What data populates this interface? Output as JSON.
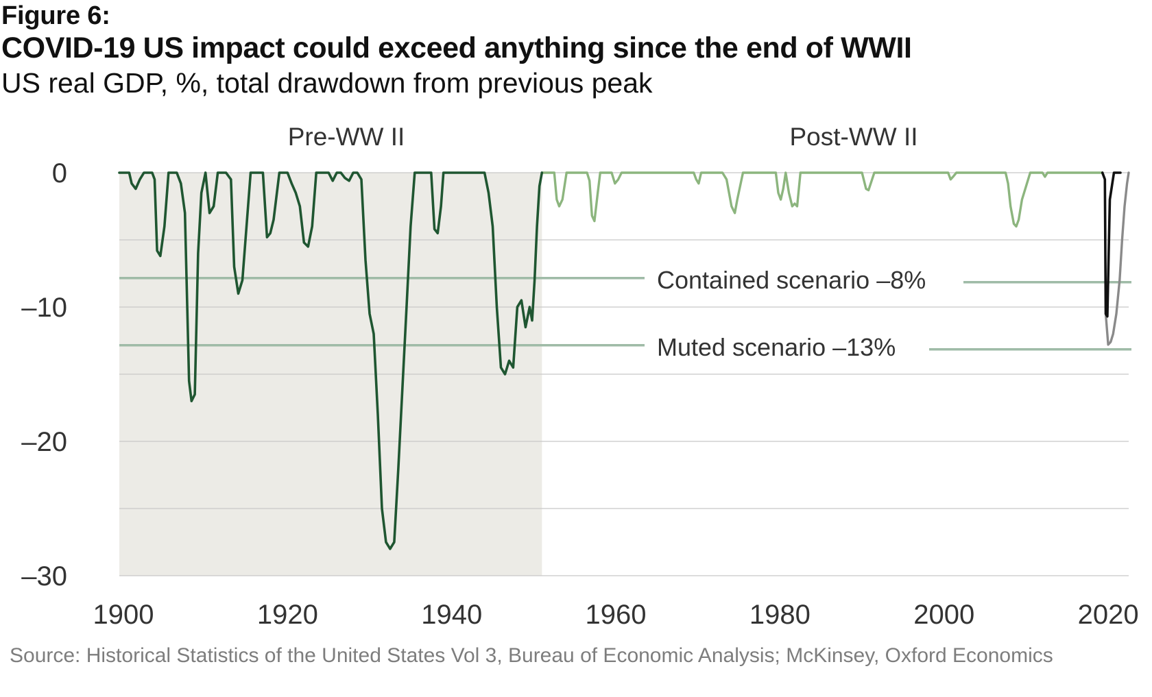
{
  "figure_label": "Figure 6:",
  "title": "COVID-19 US impact could exceed anything since the end of WWII",
  "subtitle": "US real GDP, %, total drawdown from previous peak",
  "source": "Source: Historical Statistics of the United States Vol 3, Bureau of Economic Analysis; McKinsey, Oxford Economics",
  "colors": {
    "pre_ww2": "#1f5631",
    "post_ww2": "#8cb57e",
    "covid_actual": "#111111",
    "covid_scenario": "#8a8a8a",
    "scenario_line": "#9fbba7",
    "shade": "#ecebe6",
    "grid": "#c8c8c8"
  },
  "chart_data": {
    "type": "line",
    "xlim": [
      1900,
      2023
    ],
    "ylim": [
      -30,
      0
    ],
    "x_ticks": [
      1900,
      1920,
      1940,
      1960,
      1980,
      2000,
      2020
    ],
    "y_ticks": [
      0,
      -10,
      -20,
      -30
    ],
    "y_tick_labels": [
      "0",
      "–10",
      "–20",
      "–30"
    ],
    "periods": [
      {
        "label": "Pre-WW II",
        "from": 1900,
        "to": 1951.5,
        "shaded": true
      },
      {
        "label": "Post-WW II",
        "from": 1951.5,
        "to": 2023,
        "shaded": false
      }
    ],
    "scenarios": [
      {
        "label": "Contained scenario –8%",
        "value": -8
      },
      {
        "label": "Muted scenario –13%",
        "value": -13
      }
    ],
    "series": [
      {
        "key": "pre_ww2",
        "x": [
          1900,
          1901.2,
          1901.5,
          1902,
          1902.5,
          1903,
          1904,
          1904.3,
          1904.6,
          1905,
          1905.5,
          1906,
          1907,
          1907.5,
          1908,
          1908.5,
          1908.8,
          1909.2,
          1909.6,
          1910,
          1910.5,
          1911,
          1911.5,
          1912,
          1913,
          1913.6,
          1914,
          1914.5,
          1915,
          1915.5,
          1916,
          1916.5,
          1917.5,
          1918,
          1918.4,
          1918.8,
          1919.5,
          1920.5,
          1921,
          1921.5,
          1922,
          1922.5,
          1923,
          1923.5,
          1924,
          1924.5,
          1925.5,
          1926,
          1926.5,
          1927,
          1927.5,
          1928,
          1928.5,
          1929,
          1929.5,
          1930,
          1930.5,
          1931,
          1931.5,
          1932,
          1932.5,
          1933,
          1933.5,
          1934,
          1934.5,
          1935,
          1935.5,
          1936,
          1936.5,
          1937,
          1938,
          1938.4,
          1938.8,
          1939.2,
          1939.5,
          1941,
          1942,
          1943,
          1944,
          1944.5,
          1945,
          1945.5,
          1946,
          1946.5,
          1947,
          1947.5,
          1948,
          1948.5,
          1949,
          1949.5,
          1950,
          1950.3,
          1950.6,
          1950.9,
          1951.2,
          1951.5
        ],
        "y": [
          0,
          0,
          -0.8,
          -1.2,
          -0.5,
          0,
          0,
          -0.5,
          -5.8,
          -6.2,
          -4,
          0,
          0,
          -0.8,
          -3,
          -15.5,
          -17,
          -16.5,
          -6,
          -1.5,
          0,
          -3,
          -2.5,
          0,
          0,
          -0.5,
          -7,
          -9,
          -8,
          -4,
          0,
          0,
          0,
          -4.8,
          -4.5,
          -3.5,
          0,
          0,
          -0.8,
          -1.5,
          -2.5,
          -5.2,
          -5.5,
          -4,
          0,
          0,
          0,
          -0.6,
          0,
          0,
          -0.4,
          -0.6,
          0,
          0,
          -0.5,
          -6.5,
          -10.5,
          -12,
          -18,
          -25,
          -27.5,
          -28,
          -27.5,
          -22,
          -16,
          -10,
          -4,
          0,
          0,
          0,
          0,
          -4.2,
          -4.5,
          -2.5,
          0,
          0,
          0,
          0,
          0,
          0,
          -1.5,
          -4,
          -10,
          -14.5,
          -15,
          -14,
          -14.5,
          -10,
          -9.5,
          -11.5,
          -10,
          -11,
          -8,
          -4,
          -1,
          0
        ]
      },
      {
        "key": "post_ww2",
        "x": [
          1951.5,
          1953,
          1953.3,
          1953.6,
          1954,
          1954.5,
          1955,
          1957,
          1957.3,
          1957.6,
          1957.9,
          1958.3,
          1958.6,
          1960,
          1960.4,
          1960.8,
          1961.2,
          1970,
          1970.3,
          1970.6,
          1970.9,
          1973.5,
          1974,
          1974.3,
          1974.6,
          1975,
          1975.3,
          1976,
          1980,
          1980.3,
          1980.6,
          1980.9,
          1981.2,
          1981.6,
          1982,
          1982.3,
          1982.6,
          1983,
          1990.5,
          1991,
          1991.3,
          1992,
          2001,
          2001.3,
          2001.6,
          2002,
          2008,
          2008.3,
          2008.6,
          2009,
          2009.3,
          2009.6,
          2010,
          2010.5,
          2011,
          2012.5,
          2012.8,
          2013.1,
          2019.8
        ],
        "y": [
          0,
          0,
          -2,
          -2.5,
          -2,
          0,
          0,
          0,
          -0.6,
          -3.2,
          -3.6,
          -1.5,
          0,
          0,
          -0.8,
          -0.5,
          0,
          0,
          -0.5,
          -0.8,
          0,
          0,
          -0.5,
          -1.5,
          -2.5,
          -3,
          -2,
          0,
          0,
          -1.5,
          -2,
          -1.2,
          0,
          -1.5,
          -2.5,
          -2.3,
          -2.5,
          0,
          0,
          -1.2,
          -1.3,
          0,
          0,
          -0.5,
          -0.3,
          0,
          0,
          -0.8,
          -2.5,
          -3.8,
          -4,
          -3.5,
          -2,
          -1,
          0,
          0,
          -0.3,
          0,
          0
        ]
      },
      {
        "key": "covid_actual",
        "x": [
          2019.8,
          2020.1,
          2020.2,
          2020.4,
          2020.7,
          2021.2,
          2021.5,
          2022
        ],
        "y": [
          0,
          -0.5,
          -10.5,
          -10.7,
          -2,
          0,
          0,
          0
        ]
      },
      {
        "key": "covid_scenario",
        "x": [
          2020.2,
          2020.5,
          2020.8,
          2021.1,
          2021.5,
          2021.9,
          2022.2,
          2022.5,
          2022.8,
          2023
        ],
        "y": [
          -10.5,
          -12.8,
          -12.6,
          -12,
          -10.5,
          -8,
          -5,
          -2.5,
          -0.8,
          0
        ]
      }
    ]
  }
}
